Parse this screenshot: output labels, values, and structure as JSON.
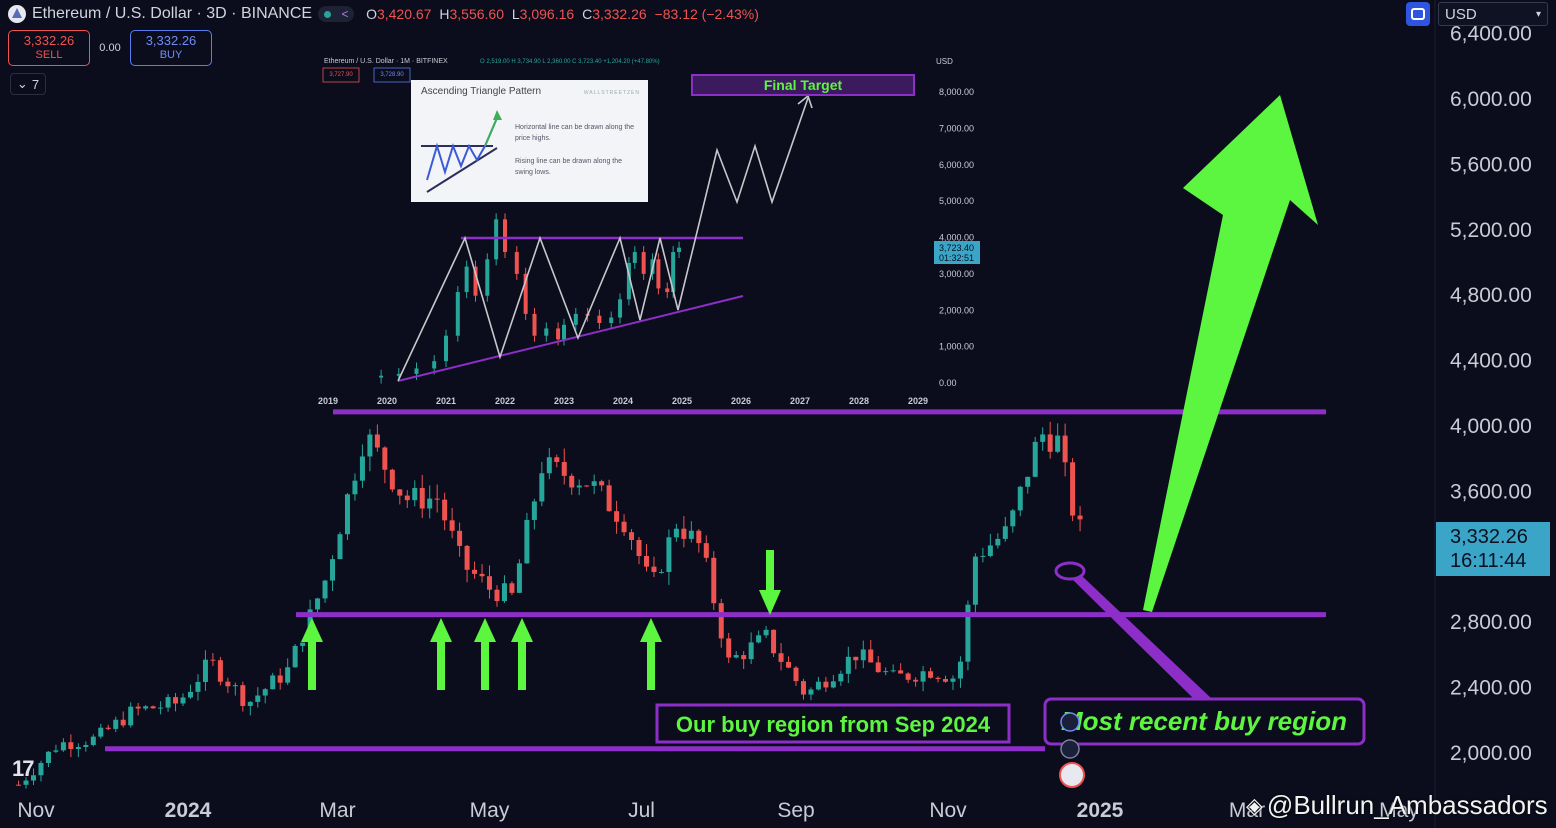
{
  "header": {
    "symbol": "Ethereum / U.S. Dollar · 3D · BINANCE",
    "ohlc": [
      {
        "k": "O",
        "v": "3,420.67"
      },
      {
        "k": "H",
        "v": "3,556.60"
      },
      {
        "k": "L",
        "v": "3,096.16"
      },
      {
        "k": "C",
        "v": "3,332.26"
      }
    ],
    "change": "−83.12 (−2.43%)",
    "sell_price": "3,332.26",
    "sell_label": "SELL",
    "buy_price": "3,332.26",
    "buy_label": "BUY",
    "spread": "0.00",
    "collapse_count": "7",
    "currency": "USD"
  },
  "price_tag": {
    "price": "3,332.26",
    "countdown": "16:11:44"
  },
  "watermark": "@Bullrun_Ambassadors",
  "colors": {
    "background": "#0b0d1c",
    "up": "#26a69a",
    "down": "#ef5350",
    "accent_purple": "#8e2ec8",
    "arrow_green": "#5cf53f",
    "label_text": "#5cf53f"
  },
  "chart_data": [
    {
      "type": "candlestick",
      "title": "Ethereum / U.S. Dollar · 3D · BINANCE",
      "y_ticks": [
        "2,000.00",
        "2,400.00",
        "2,800.00",
        "3,200.00",
        "3,600.00",
        "4,000.00",
        "4,400.00",
        "4,800.00",
        "5,200.00",
        "5,600.00",
        "6,000.00",
        "6,400.00"
      ],
      "ylim": [
        1850,
        6450
      ],
      "x_ticks": [
        "Nov",
        "2024",
        "Mar",
        "May",
        "Jul",
        "Sep",
        "Nov",
        "2025",
        "Mar",
        "May"
      ],
      "x_tick_dates": [
        "2023-11-01",
        "2024-01-01",
        "2024-03-01",
        "2024-05-01",
        "2024-07-01",
        "2024-09-01",
        "2024-11-01",
        "2025-01-01",
        "2025-03-01",
        "2025-05-01"
      ],
      "series_close_path": [
        [
          "2023-10-25",
          1800
        ],
        [
          "2023-11-10",
          2050
        ],
        [
          "2023-11-25",
          2080
        ],
        [
          "2023-12-10",
          2250
        ],
        [
          "2023-12-28",
          2300
        ],
        [
          "2024-01-10",
          2550
        ],
        [
          "2024-01-25",
          2300
        ],
        [
          "2024-02-10",
          2500
        ],
        [
          "2024-02-25",
          3050
        ],
        [
          "2024-03-12",
          3950
        ],
        [
          "2024-03-28",
          3550
        ],
        [
          "2024-04-10",
          3550
        ],
        [
          "2024-04-20",
          3150
        ],
        [
          "2024-05-01",
          3000
        ],
        [
          "2024-05-10",
          2950
        ],
        [
          "2024-05-22",
          3750
        ],
        [
          "2024-06-10",
          3650
        ],
        [
          "2024-06-25",
          3400
        ],
        [
          "2024-07-05",
          3000
        ],
        [
          "2024-07-15",
          3400
        ],
        [
          "2024-07-25",
          3250
        ],
        [
          "2024-08-05",
          2550
        ],
        [
          "2024-08-20",
          2700
        ],
        [
          "2024-09-05",
          2350
        ],
        [
          "2024-09-25",
          2600
        ],
        [
          "2024-10-10",
          2450
        ],
        [
          "2024-10-25",
          2500
        ],
        [
          "2024-11-05",
          2450
        ],
        [
          "2024-11-12",
          3200
        ],
        [
          "2024-11-25",
          3350
        ],
        [
          "2024-12-08",
          3950
        ],
        [
          "2024-12-15",
          3900
        ],
        [
          "2024-12-22",
          3420
        ],
        [
          "2024-12-25",
          3332
        ]
      ],
      "horizontal_levels": [
        {
          "label": "",
          "value": 4080
        },
        {
          "label": "",
          "value": 2840
        },
        {
          "label": "",
          "value": 2020
        }
      ],
      "annotations": [
        {
          "text": "Our buy region from Sep 2024"
        },
        {
          "text": "Most recent buy region"
        }
      ],
      "last_price": 3332.26
    },
    {
      "type": "candlestick",
      "title": "Ethereum / U.S. Dollar · 1M · BITFINEX",
      "ohlc_text": "O 2,519.00 H 3,734.90 L 2,360.00 C 3,723.40 +1,204.20 (+47.80%)",
      "sell": "3,727.90",
      "buy": "3,728.90",
      "currency": "USD",
      "y_ticks": [
        "0.00",
        "1,000.00",
        "2,000.00",
        "3,000.00",
        "4,000.00",
        "5,000.00",
        "6,000.00",
        "7,000.00",
        "8,000.00"
      ],
      "ylim": [
        0,
        8000
      ],
      "x_ticks": [
        "2019",
        "2020",
        "2021",
        "2022",
        "2023",
        "2024",
        "2025",
        "2026",
        "2027",
        "2028",
        "2029"
      ],
      "last_price_tag": "3,723.40",
      "countdown": "01:32:51",
      "annotations": [
        {
          "text": "Final Target"
        },
        {
          "text": "Ascending Triangle Pattern"
        },
        {
          "text": "WALLSTREETZEN"
        },
        {
          "text": "Horizontal line can be drawn along the price highs."
        },
        {
          "text": "Rising line can be drawn along the swing lows."
        }
      ],
      "pattern": "ascending-triangle"
    }
  ]
}
